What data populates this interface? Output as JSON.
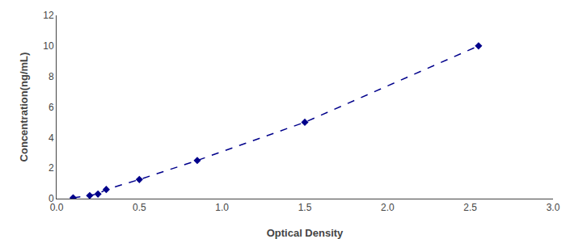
{
  "chart_data": {
    "type": "line",
    "x": [
      0.1,
      0.2,
      0.25,
      0.3,
      0.5,
      0.85,
      1.5,
      2.55
    ],
    "values": [
      0.05,
      0.2,
      0.3,
      0.6,
      1.25,
      2.5,
      5.0,
      10.0
    ],
    "color": "#00008B",
    "marker": "diamond",
    "line_style": "dashed",
    "xlabel": "Optical Density",
    "ylabel": "Concentration(ng/mL)",
    "xlim": [
      0,
      3
    ],
    "ylim": [
      0,
      12
    ],
    "xticks": [
      {
        "value": 0,
        "label": "0.0"
      },
      {
        "value": 0.5,
        "label": "0.5"
      },
      {
        "value": 1,
        "label": "1.0"
      },
      {
        "value": 1.5,
        "label": "1.5"
      },
      {
        "value": 2,
        "label": "2.0"
      },
      {
        "value": 2.5,
        "label": "2.5"
      },
      {
        "value": 3,
        "label": "3.0"
      }
    ],
    "yticks": [
      0,
      2,
      4,
      6,
      8,
      10,
      12
    ],
    "grid": false
  }
}
